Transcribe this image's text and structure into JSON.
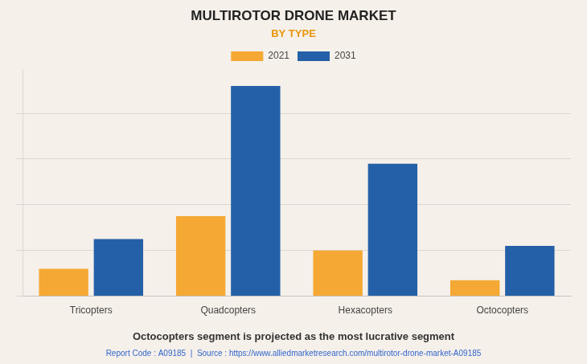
{
  "chart_data": {
    "type": "bar",
    "title": "MULTIROTOR DRONE MARKET",
    "subtitle": "BY TYPE",
    "categories": [
      "Tricopters",
      "Quadcopters",
      "Hexacopters",
      "Octocopters"
    ],
    "series": [
      {
        "name": "2021",
        "color": "#F5A833",
        "values": [
          12,
          35,
          20,
          7
        ]
      },
      {
        "name": "2031",
        "color": "#2460A7",
        "values": [
          25,
          92,
          58,
          22
        ]
      }
    ],
    "ylim": [
      0,
      99.36
    ],
    "yticks": [
      0,
      20,
      40,
      60,
      80
    ],
    "grid": true,
    "legend": "top",
    "tick_labels": "x",
    "annotations": [
      "Octocopters segment is projected as the most lucrative segment",
      "Report Code : A09185  |  Source : https://www.alliedmarketresearch.com/multirotor-drone-market-A09185"
    ]
  }
}
